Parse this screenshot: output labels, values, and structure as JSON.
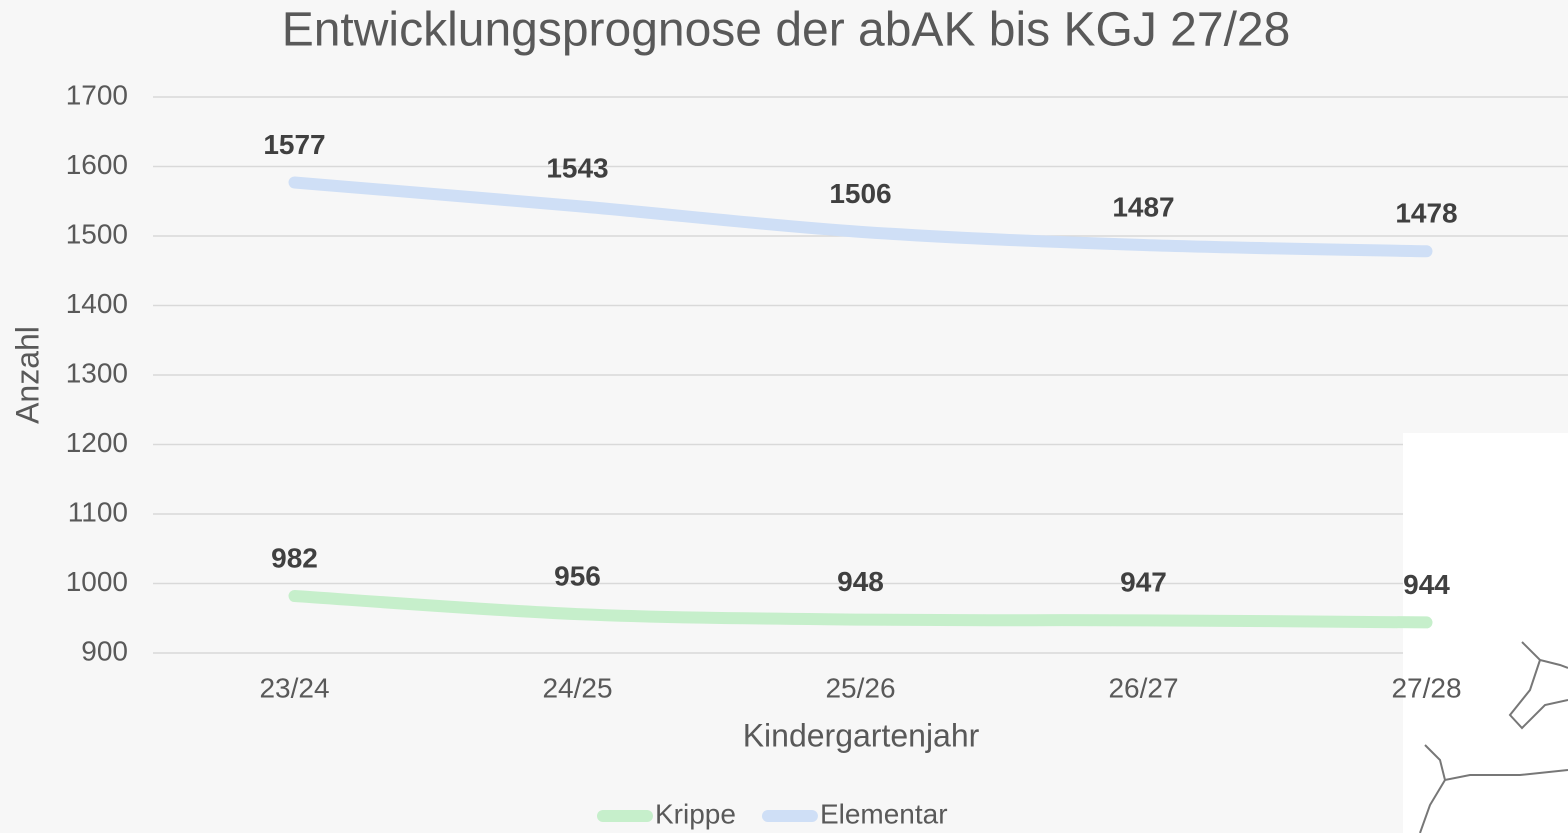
{
  "chart_data": {
    "type": "line",
    "title": "Entwicklungsprognose der abAK bis KGJ 27/28",
    "x_label": "Kindergartenjahr",
    "y_label": "Anzahl",
    "categories": [
      "23/24",
      "24/25",
      "25/26",
      "26/27",
      "27/28"
    ],
    "series": [
      {
        "name": "Krippe",
        "color": "#c6efcb",
        "values": [
          982,
          956,
          948,
          947,
          944
        ]
      },
      {
        "name": "Elementar",
        "color": "#cfdff6",
        "values": [
          1577,
          1543,
          1506,
          1487,
          1478
        ]
      }
    ],
    "ylim": [
      900,
      1700
    ],
    "yticks": [
      900,
      1000,
      1100,
      1200,
      1300,
      1400,
      1500,
      1600,
      1700
    ],
    "grid": true,
    "legend": "bottom"
  }
}
